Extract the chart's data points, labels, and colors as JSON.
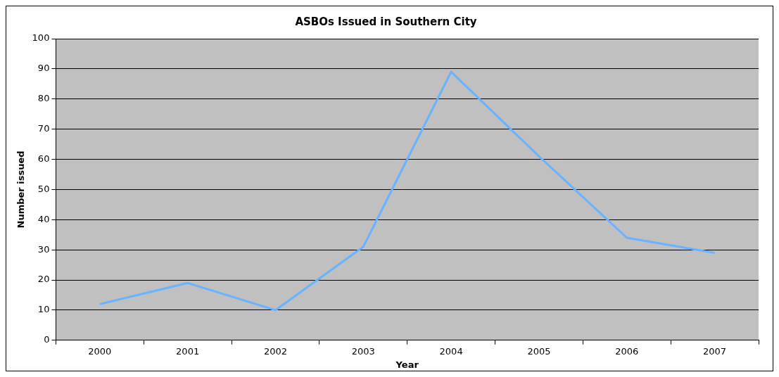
{
  "chart_data": {
    "type": "line",
    "title": "ASBOs Issued in Southern City",
    "xlabel": "Year",
    "ylabel": "Number issued",
    "categories": [
      "2000",
      "2001",
      "2002",
      "2003",
      "2004",
      "2005",
      "2006",
      "2007"
    ],
    "series": [
      {
        "color": "#66b3ff",
        "values": [
          12,
          19,
          10,
          31,
          89,
          61,
          34,
          29
        ]
      }
    ],
    "ylim": [
      0,
      100
    ],
    "yticks": [
      0,
      10,
      20,
      30,
      40,
      50,
      60,
      70,
      80,
      90,
      100
    ],
    "grid": "y",
    "legend": false,
    "marker": "none",
    "line_style": "solid"
  }
}
